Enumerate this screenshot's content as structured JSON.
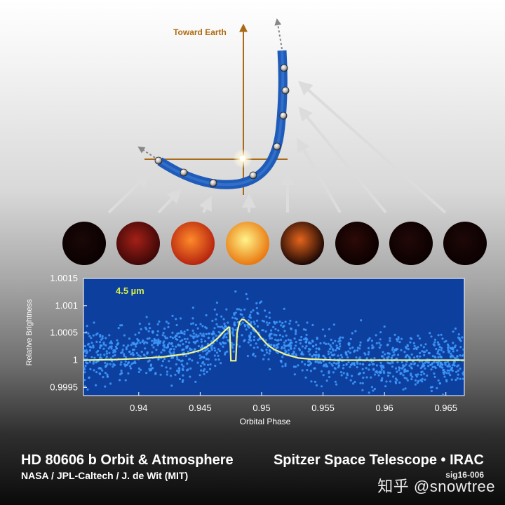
{
  "orbit_diagram": {
    "toward_earth_label": "Toward Earth",
    "colors": {
      "orbit": "#1f5bb8",
      "axis": "#a86a14",
      "label": "#b06a10",
      "arrow": "#d8d8d8"
    }
  },
  "phase_disks": [
    {
      "name": "phase-1",
      "color_center": "#1a0808",
      "color_edge": "#0a0000"
    },
    {
      "name": "phase-2",
      "color_center": "#a32118",
      "color_edge": "#3a0606"
    },
    {
      "name": "phase-3",
      "color_center": "#ff8a2a",
      "color_edge": "#b3200e"
    },
    {
      "name": "phase-4",
      "color_center": "#fff38a",
      "color_edge": "#e8740a"
    },
    {
      "name": "phase-5",
      "color_center": "#e4641c",
      "color_edge": "#140404"
    },
    {
      "name": "phase-6",
      "color_center": "#2c0a08",
      "color_edge": "#0a0000"
    },
    {
      "name": "phase-7",
      "color_center": "#220808",
      "color_edge": "#0a0000"
    },
    {
      "name": "phase-8",
      "color_center": "#1e0808",
      "color_edge": "#0a0000"
    }
  ],
  "chart_data": {
    "type": "scatter",
    "title": "",
    "annotation": "4.5 µm",
    "xlabel": "Orbital Phase",
    "ylabel": "Relative Brightness",
    "xlim": [
      0.9355,
      0.9665
    ],
    "ylim": [
      0.99935,
      1.0015
    ],
    "x_ticks": [
      0.94,
      0.945,
      0.95,
      0.955,
      0.96,
      0.965
    ],
    "x_tick_labels": [
      "0.94",
      "0.945",
      "0.95",
      "0.955",
      "0.96",
      "0.965"
    ],
    "y_ticks": [
      0.9995,
      1.0,
      1.0005,
      1.001,
      1.0015
    ],
    "y_tick_labels": [
      "0.9995",
      "1",
      "1.0005",
      "1.001",
      "1.0015"
    ],
    "grid": false,
    "colors": {
      "background": "#0d3f9e",
      "points": "#3f9bff",
      "model": "#f0f58a",
      "annotation": "#d7ef4a"
    },
    "series": [
      {
        "kind": "model-line",
        "x": [
          0.9355,
          0.938,
          0.94,
          0.942,
          0.943,
          0.944,
          0.945,
          0.9455,
          0.946,
          0.9465,
          0.947,
          0.9473,
          0.9474,
          0.9475,
          0.9478,
          0.9479,
          0.948,
          0.9482,
          0.9484,
          0.9486,
          0.949,
          0.9495,
          0.95,
          0.9505,
          0.951,
          0.952,
          0.953,
          0.954,
          0.955,
          0.956,
          0.958,
          0.9665
        ],
        "y": [
          1.0,
          1.00001,
          1.00003,
          1.00006,
          1.00009,
          1.00012,
          1.00018,
          1.00024,
          1.00032,
          1.00042,
          1.00054,
          1.0006,
          1.0006,
          0.99999,
          0.99999,
          0.99999,
          1.0005,
          1.0007,
          1.00075,
          1.00074,
          1.00066,
          1.00055,
          1.0004,
          1.00028,
          1.0002,
          1.0001,
          1.00004,
          1.00002,
          1.00001,
          1.0,
          1.0,
          1.0
        ]
      },
      {
        "kind": "observations",
        "density_profile": [
          {
            "x": 0.9355,
            "y": 1.00005
          },
          {
            "x": 0.9455,
            "y": 1.00025
          },
          {
            "x": 0.948,
            "y": 1.00065
          },
          {
            "x": 0.951,
            "y": 1.0004
          },
          {
            "x": 0.955,
            "y": 1.00005
          },
          {
            "x": 0.9665,
            "y": 1.0
          }
        ],
        "scatter_sigma": 0.00025,
        "count": 1400
      }
    ]
  },
  "footer": {
    "title": "HD 80606 b Orbit & Atmosphere",
    "credit": "NASA / JPL-Caltech / J. de Wit (MIT)",
    "instrument": "Spitzer Space Telescope • IRAC",
    "code": "sig16-006",
    "watermark": "知乎 @snowtree"
  }
}
